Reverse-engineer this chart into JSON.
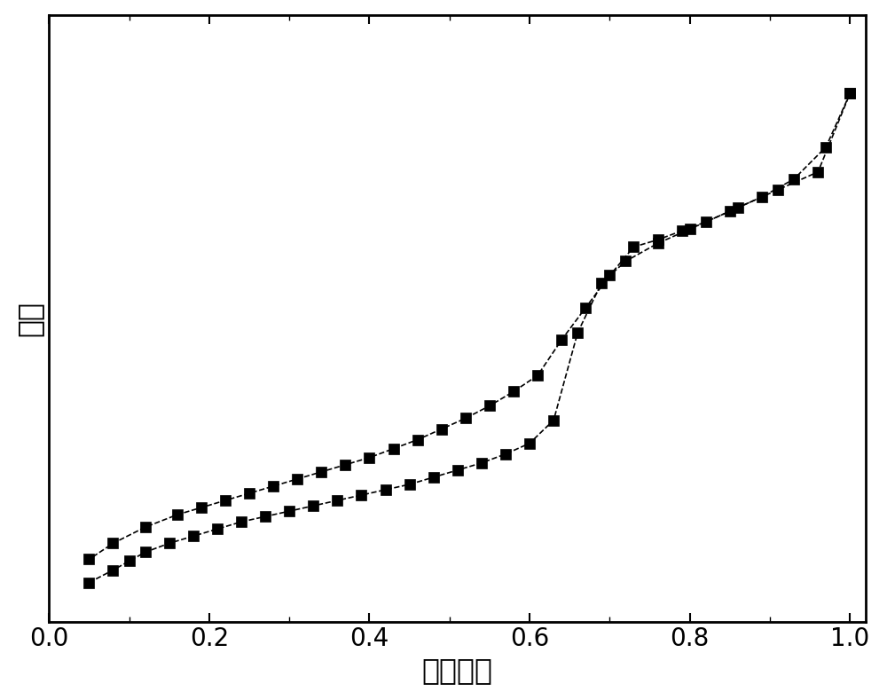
{
  "adsorption_x": [
    0.05,
    0.08,
    0.1,
    0.12,
    0.15,
    0.18,
    0.21,
    0.24,
    0.27,
    0.3,
    0.33,
    0.36,
    0.39,
    0.42,
    0.45,
    0.48,
    0.51,
    0.54,
    0.57,
    0.6,
    0.63,
    0.66,
    0.69,
    0.72,
    0.76,
    0.8,
    0.86,
    0.91,
    0.96,
    1.0
  ],
  "adsorption_y": [
    42,
    49,
    54,
    59,
    64,
    68,
    72,
    76,
    79,
    82,
    85,
    88,
    91,
    94,
    97,
    101,
    105,
    109,
    114,
    120,
    133,
    182,
    210,
    222,
    232,
    240,
    252,
    262,
    272,
    316
  ],
  "desorption_x": [
    1.0,
    0.97,
    0.93,
    0.89,
    0.85,
    0.82,
    0.79,
    0.76,
    0.73,
    0.7,
    0.67,
    0.64,
    0.61,
    0.58,
    0.55,
    0.52,
    0.49,
    0.46,
    0.43,
    0.4,
    0.37,
    0.34,
    0.31,
    0.28,
    0.25,
    0.22,
    0.19,
    0.16,
    0.12,
    0.08,
    0.05
  ],
  "desorption_y": [
    316,
    286,
    268,
    258,
    250,
    244,
    239,
    234,
    230,
    214,
    196,
    178,
    158,
    149,
    141,
    134,
    128,
    122,
    117,
    112,
    108,
    104,
    100,
    96,
    92,
    88,
    84,
    80,
    73,
    64,
    55
  ],
  "xlabel": "相对压力",
  "ylabel": "体积",
  "xlim": [
    0.0,
    1.02
  ],
  "ylim": [
    20,
    360
  ],
  "xticks": [
    0.0,
    0.2,
    0.4,
    0.6,
    0.8,
    1.0
  ],
  "line_color": "#000000",
  "marker": "s",
  "markersize": 8,
  "linewidth": 1.2,
  "linestyle": "--",
  "xlabel_fontsize": 24,
  "ylabel_fontsize": 24,
  "tick_fontsize": 20,
  "background_color": "#ffffff",
  "figure_width": 10.0,
  "figure_height": 7.89
}
